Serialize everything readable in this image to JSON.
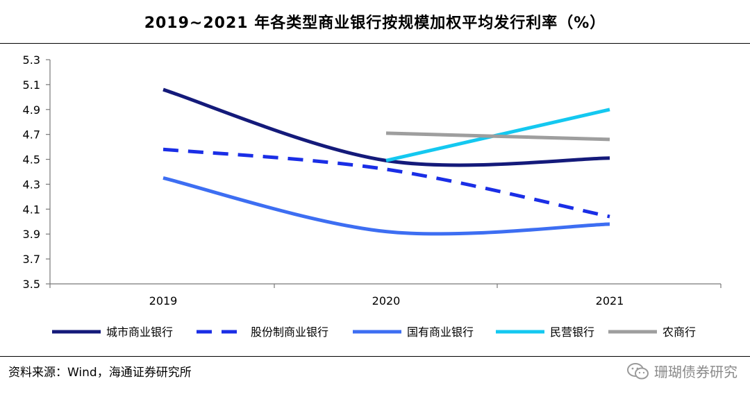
{
  "header": {
    "title": "2019~2021 年各类型商业银行按规模加权平均发行利率（%）"
  },
  "footer": {
    "source": "资料来源：Wind，海通证券研究所",
    "watermark": "珊瑚债券研究"
  },
  "chart_data": {
    "type": "line",
    "title": "2019~2021 年各类型商业银行按规模加权平均发行利率（%）",
    "xlabel": "",
    "ylabel": "",
    "categories": [
      "2019",
      "2020",
      "2021"
    ],
    "yticks": [
      "3.5",
      "3.7",
      "3.9",
      "4.1",
      "4.3",
      "4.5",
      "4.7",
      "4.9",
      "5.1",
      "5.3"
    ],
    "ylim": [
      3.5,
      5.3
    ],
    "grid": false,
    "legend_position": "bottom",
    "series": [
      {
        "name": "城市商业银行",
        "values": [
          5.06,
          4.49,
          4.51
        ],
        "color": "#141a7a",
        "dash": false
      },
      {
        "name": "股份制商业银行",
        "values": [
          4.58,
          4.42,
          4.04
        ],
        "color": "#1a2ee6",
        "dash": true
      },
      {
        "name": "国有商业银行",
        "values": [
          4.35,
          3.92,
          3.98
        ],
        "color": "#3d6ef2",
        "dash": false
      },
      {
        "name": "民营银行",
        "values": [
          null,
          4.49,
          4.9
        ],
        "color": "#14c8f0",
        "dash": false
      },
      {
        "name": "农商行",
        "values": [
          null,
          4.71,
          4.66
        ],
        "color": "#9e9e9e",
        "dash": false
      }
    ]
  }
}
